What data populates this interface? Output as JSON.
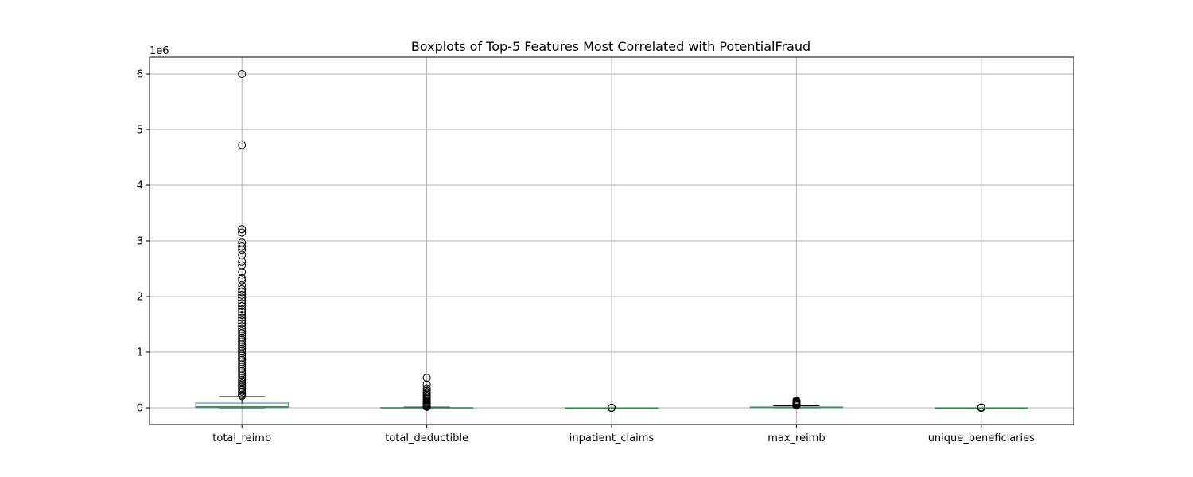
{
  "chart_data": {
    "type": "boxplot",
    "title": "Boxplots of Top-5 Features Most Correlated with PotentialFraud",
    "xlabel": "",
    "ylabel": "",
    "y_offset_label": "1e6",
    "y_scale": 1000000,
    "ylim": [
      -300000,
      6300000
    ],
    "yticks": [
      0,
      1000000,
      2000000,
      3000000,
      4000000,
      5000000,
      6000000
    ],
    "ytick_labels": [
      "0",
      "1",
      "2",
      "3",
      "4",
      "5",
      "6"
    ],
    "grid": true,
    "categories": [
      "total_reimb",
      "total_deductible",
      "inpatient_claims",
      "max_reimb",
      "unique_beneficiaries"
    ],
    "boxes": [
      {
        "name": "total_reimb",
        "whisker_low": 0,
        "q1": 5000,
        "median": 20000,
        "q3": 85000,
        "whisker_high": 200000,
        "outliers": [
          6000000,
          4720000,
          3210000,
          3150000,
          2970000,
          2900000,
          2840000,
          2750000,
          2630000,
          2560000,
          2440000,
          2330000,
          2290000,
          2200000,
          2130000,
          2080000,
          2030000,
          1980000,
          1930000,
          1880000,
          1830000,
          1770000,
          1720000,
          1670000,
          1620000,
          1570000,
          1520000,
          1470000,
          1420000,
          1380000,
          1340000,
          1300000,
          1260000,
          1220000,
          1180000,
          1140000,
          1100000,
          1060000,
          1020000,
          980000,
          940000,
          900000,
          860000,
          820000,
          780000,
          740000,
          700000,
          660000,
          620000,
          580000,
          540000,
          500000,
          470000,
          440000,
          410000,
          380000,
          350000,
          320000,
          290000,
          260000,
          230000,
          210000
        ]
      },
      {
        "name": "total_deductible",
        "whisker_low": 0,
        "q1": 0,
        "median": 1000,
        "q3": 4000,
        "whisker_high": 12000,
        "outliers": [
          540000,
          420000,
          350000,
          310000,
          280000,
          250000,
          230000,
          210000,
          190000,
          170000,
          150000,
          130000,
          110000,
          95000,
          80000,
          65000,
          50000,
          40000,
          30000,
          22000,
          16000
        ]
      },
      {
        "name": "inpatient_claims",
        "whisker_low": 0,
        "q1": 0,
        "median": 0,
        "q3": 1,
        "whisker_high": 2,
        "outliers": [
          3,
          5,
          8,
          15,
          30,
          60,
          100
        ]
      },
      {
        "name": "max_reimb",
        "whisker_low": 0,
        "q1": 3000,
        "median": 9000,
        "q3": 15000,
        "whisker_high": 36000,
        "outliers": [
          130000,
          120000,
          110000,
          100000,
          90000,
          80000,
          70000,
          60000,
          52000,
          45000,
          40000
        ]
      },
      {
        "name": "unique_beneficiaries",
        "whisker_low": 0,
        "q1": 10,
        "median": 40,
        "q3": 120,
        "whisker_high": 300,
        "outliers": [
          400,
          600,
          900,
          1500,
          2500,
          4000,
          8000
        ]
      }
    ],
    "colors": {
      "box": "#1f77b4",
      "median": "#2ca02c",
      "whisker": "#000000",
      "grid": "#b0b0b0",
      "outlier_edge": "#000000"
    }
  }
}
